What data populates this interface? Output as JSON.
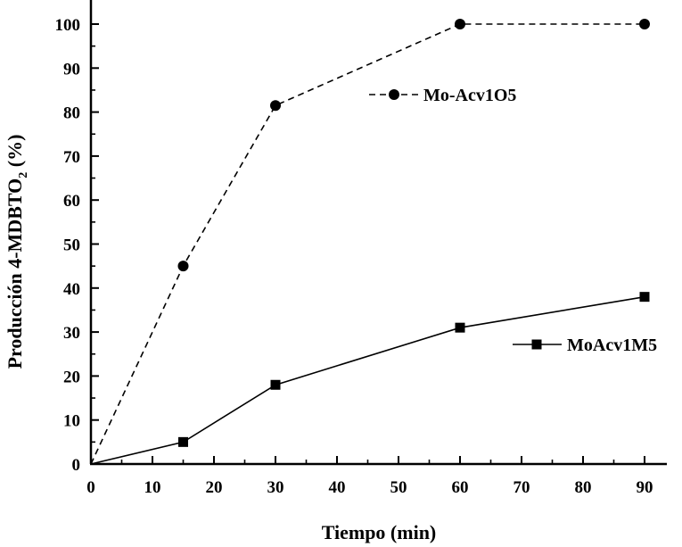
{
  "chart_data": {
    "type": "line",
    "title": "",
    "xlabel": "Tiempo (min)",
    "ylabel": "Producción 4-MDBTO",
    "ylabel_subscript": "2",
    "ylabel_suffix": " (%)",
    "xlim": [
      0,
      93
    ],
    "ylim": [
      0,
      103
    ],
    "xticks": [
      0,
      10,
      20,
      30,
      40,
      50,
      60,
      70,
      80,
      90
    ],
    "yticks": [
      0,
      10,
      20,
      30,
      40,
      50,
      60,
      70,
      80,
      90,
      100
    ],
    "grid": false,
    "series": [
      {
        "name": "Mo-Acv1O5",
        "marker": "circle",
        "line": "dashed",
        "legend_position": "top-center",
        "x": [
          0,
          15,
          30,
          60,
          90
        ],
        "y": [
          0,
          45,
          81.5,
          100,
          100
        ]
      },
      {
        "name": "MoAcv1M5",
        "marker": "square",
        "line": "solid",
        "legend_position": "center-right",
        "x": [
          0,
          15,
          30,
          60,
          90
        ],
        "y": [
          0,
          5,
          18,
          31,
          38
        ]
      }
    ]
  }
}
